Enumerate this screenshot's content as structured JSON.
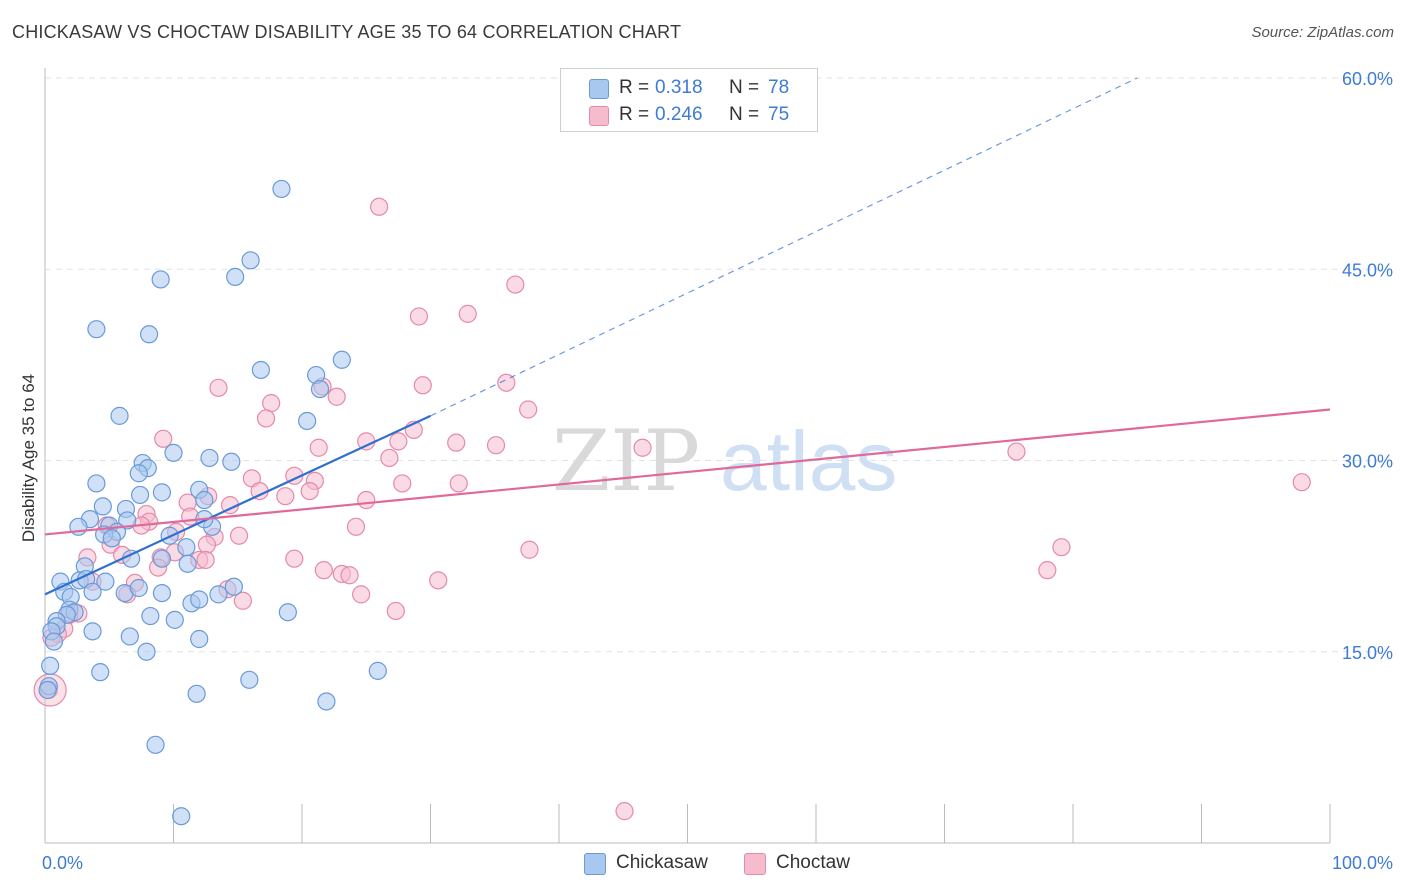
{
  "header": {
    "title": "CHICKASAW VS CHOCTAW DISABILITY AGE 35 TO 64 CORRELATION CHART",
    "source": "Source: ZipAtlas.com"
  },
  "legend": {
    "rows": [
      {
        "r_label": "R =",
        "r_value": "0.318",
        "n_label": "N =",
        "n_value": "78"
      },
      {
        "r_label": "R =",
        "r_value": "0.246",
        "n_label": "N =",
        "n_value": "75"
      }
    ]
  },
  "bottom_legend": {
    "items": [
      {
        "label": "Chickasaw"
      },
      {
        "label": "Choctaw"
      }
    ]
  },
  "watermark": {
    "zip": "ZIP",
    "atlas": "atlas"
  },
  "colors": {
    "chickasaw_fill": "#a9c8f0",
    "chickasaw_stroke": "#6a9ad8",
    "chickasaw_line": "#2f6fcf",
    "choctaw_fill": "#f6bccd",
    "choctaw_stroke": "#e58aa8",
    "choctaw_line": "#e0699a",
    "tick_text": "#3d7bd6",
    "grid": "#e2e2e2"
  },
  "chart_data": {
    "type": "scatter",
    "title": "CHICKASAW VS CHOCTAW DISABILITY AGE 35 TO 64 CORRELATION CHART",
    "xlabel": "",
    "ylabel": "Disability Age 35 to 64",
    "xlim": [
      0,
      100
    ],
    "ylim": [
      0,
      60
    ],
    "x_tick_labels": [
      "0.0%",
      "100.0%"
    ],
    "y_ticks": [
      15,
      30,
      45,
      60
    ],
    "y_tick_labels": [
      "15.0%",
      "30.0%",
      "45.0%",
      "60.0%"
    ],
    "grid": true,
    "legend_position": "top-center",
    "series": [
      {
        "name": "Chickasaw",
        "R": 0.318,
        "N": 78,
        "trend": {
          "x0": 0,
          "y0": 19.5,
          "x1": 30,
          "y1": 33.5,
          "dashed_to_x": 85,
          "dashed_to_y": 60
        },
        "points": [
          [
            18.4,
            51.3
          ],
          [
            16.0,
            45.7
          ],
          [
            14.8,
            44.4
          ],
          [
            9.0,
            44.2
          ],
          [
            4.0,
            40.3
          ],
          [
            8.1,
            39.9
          ],
          [
            23.1,
            37.9
          ],
          [
            16.8,
            37.1
          ],
          [
            21.1,
            36.7
          ],
          [
            21.4,
            35.6
          ],
          [
            5.8,
            33.5
          ],
          [
            20.4,
            33.1
          ],
          [
            7.6,
            29.8
          ],
          [
            8.0,
            29.4
          ],
          [
            7.3,
            29.0
          ],
          [
            12.8,
            30.2
          ],
          [
            14.5,
            29.9
          ],
          [
            10.0,
            30.6
          ],
          [
            4.0,
            28.2
          ],
          [
            7.4,
            27.3
          ],
          [
            12.0,
            27.7
          ],
          [
            4.5,
            26.4
          ],
          [
            6.3,
            26.2
          ],
          [
            12.4,
            26.9
          ],
          [
            3.5,
            25.4
          ],
          [
            6.4,
            25.3
          ],
          [
            2.6,
            24.8
          ],
          [
            5.0,
            24.9
          ],
          [
            5.6,
            24.4
          ],
          [
            4.6,
            24.2
          ],
          [
            13.0,
            24.8
          ],
          [
            9.7,
            24.1
          ],
          [
            5.2,
            23.9
          ],
          [
            11.0,
            23.2
          ],
          [
            9.1,
            22.3
          ],
          [
            6.7,
            22.3
          ],
          [
            11.1,
            21.9
          ],
          [
            3.1,
            21.7
          ],
          [
            2.7,
            20.6
          ],
          [
            1.2,
            20.5
          ],
          [
            3.2,
            20.7
          ],
          [
            4.7,
            20.5
          ],
          [
            1.5,
            19.7
          ],
          [
            6.2,
            19.6
          ],
          [
            7.3,
            20.0
          ],
          [
            3.7,
            19.7
          ],
          [
            14.7,
            20.1
          ],
          [
            9.1,
            19.6
          ],
          [
            11.4,
            18.8
          ],
          [
            12.0,
            19.1
          ],
          [
            13.5,
            19.5
          ],
          [
            2.0,
            19.3
          ],
          [
            1.9,
            18.3
          ],
          [
            2.3,
            18.1
          ],
          [
            1.7,
            17.9
          ],
          [
            18.9,
            18.1
          ],
          [
            8.2,
            17.8
          ],
          [
            10.1,
            17.5
          ],
          [
            0.9,
            17.4
          ],
          [
            0.9,
            17.0
          ],
          [
            3.7,
            16.6
          ],
          [
            0.5,
            16.6
          ],
          [
            6.6,
            16.2
          ],
          [
            12.0,
            16.0
          ],
          [
            0.7,
            15.8
          ],
          [
            7.9,
            15.0
          ],
          [
            0.4,
            13.9
          ],
          [
            4.3,
            13.4
          ],
          [
            25.9,
            13.5
          ],
          [
            15.9,
            12.8
          ],
          [
            11.8,
            11.7
          ],
          [
            0.3,
            12.3
          ],
          [
            21.9,
            11.1
          ],
          [
            8.6,
            7.7
          ],
          [
            10.6,
            2.1
          ],
          [
            0.2,
            12.0
          ],
          [
            12.4,
            25.4
          ],
          [
            9.1,
            27.5
          ]
        ]
      },
      {
        "name": "Choctaw",
        "R": 0.246,
        "N": 75,
        "trend": {
          "x0": 0,
          "y0": 24.2,
          "x1": 100,
          "y1": 34.0
        },
        "points": [
          [
            26.0,
            49.9
          ],
          [
            36.6,
            43.8
          ],
          [
            32.9,
            41.5
          ],
          [
            29.1,
            41.3
          ],
          [
            35.9,
            36.1
          ],
          [
            29.4,
            35.9
          ],
          [
            13.5,
            35.7
          ],
          [
            21.6,
            35.8
          ],
          [
            22.7,
            35.0
          ],
          [
            17.6,
            34.5
          ],
          [
            37.6,
            34.0
          ],
          [
            17.2,
            33.3
          ],
          [
            28.7,
            32.4
          ],
          [
            9.2,
            31.7
          ],
          [
            25.0,
            31.5
          ],
          [
            27.5,
            31.5
          ],
          [
            32.0,
            31.4
          ],
          [
            35.1,
            31.2
          ],
          [
            21.3,
            31.0
          ],
          [
            46.5,
            31.0
          ],
          [
            75.6,
            30.7
          ],
          [
            26.8,
            30.2
          ],
          [
            19.4,
            28.8
          ],
          [
            16.1,
            28.6
          ],
          [
            21.0,
            28.4
          ],
          [
            27.8,
            28.2
          ],
          [
            32.2,
            28.2
          ],
          [
            16.7,
            27.6
          ],
          [
            20.6,
            27.6
          ],
          [
            12.7,
            27.2
          ],
          [
            11.1,
            26.7
          ],
          [
            14.4,
            26.5
          ],
          [
            18.7,
            27.2
          ],
          [
            25.0,
            26.9
          ],
          [
            7.9,
            25.8
          ],
          [
            8.1,
            25.2
          ],
          [
            11.3,
            25.6
          ],
          [
            7.5,
            24.9
          ],
          [
            4.8,
            24.9
          ],
          [
            10.2,
            24.4
          ],
          [
            24.2,
            24.8
          ],
          [
            15.1,
            24.1
          ],
          [
            13.2,
            24.0
          ],
          [
            12.6,
            23.4
          ],
          [
            5.1,
            23.4
          ],
          [
            37.7,
            23.0
          ],
          [
            79.1,
            23.2
          ],
          [
            10.1,
            22.8
          ],
          [
            6.0,
            22.6
          ],
          [
            3.3,
            22.4
          ],
          [
            9.0,
            22.4
          ],
          [
            19.4,
            22.3
          ],
          [
            12.0,
            22.2
          ],
          [
            8.8,
            21.6
          ],
          [
            21.7,
            21.4
          ],
          [
            78.0,
            21.4
          ],
          [
            23.1,
            21.1
          ],
          [
            23.7,
            21.0
          ],
          [
            30.6,
            20.6
          ],
          [
            3.7,
            20.5
          ],
          [
            7.0,
            20.4
          ],
          [
            14.2,
            19.9
          ],
          [
            6.4,
            19.5
          ],
          [
            24.6,
            19.5
          ],
          [
            15.4,
            19.0
          ],
          [
            27.3,
            18.2
          ],
          [
            2.6,
            18.0
          ],
          [
            1.9,
            17.9
          ],
          [
            1.5,
            16.8
          ],
          [
            1.0,
            16.4
          ],
          [
            0.5,
            16.1
          ],
          [
            0.3,
            12.0
          ],
          [
            97.8,
            28.3
          ],
          [
            45.1,
            2.5
          ],
          [
            12.5,
            22.2
          ]
        ]
      }
    ]
  }
}
